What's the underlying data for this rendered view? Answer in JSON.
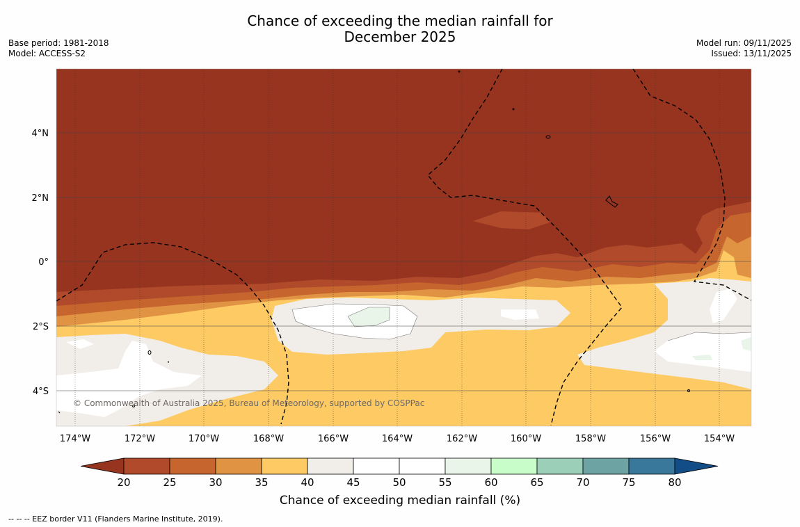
{
  "title": {
    "line1": "Chance of exceeding the median rainfall for",
    "line2": "December 2025"
  },
  "meta": {
    "base_period": "Base period: 1981-2018",
    "model": "Model: ACCESS-S2",
    "model_run": "Model run: 09/11/2025",
    "issued": "Issued: 13/11/2025"
  },
  "map": {
    "x_ticks": [
      "174°W",
      "172°W",
      "170°W",
      "168°W",
      "166°W",
      "164°W",
      "162°W",
      "160°W",
      "158°W",
      "156°W",
      "154°W"
    ],
    "y_ticks": [
      "4°N",
      "2°N",
      "0°",
      "2°S",
      "4°S"
    ],
    "copyright": "© Commonwealth of Australia 2025, Bureau of Meteorology, supported by COSPPac"
  },
  "colorbar": {
    "title": "Chance of exceeding median rainfall (%)",
    "tick_labels": [
      "20",
      "25",
      "30",
      "35",
      "40",
      "45",
      "50",
      "55",
      "60",
      "65",
      "70",
      "75",
      "80"
    ],
    "colors": [
      "#973420",
      "#b04a2a",
      "#c7652f",
      "#e19344",
      "#fdca64",
      "#f1ede8",
      "#ffffff",
      "#ffffff",
      "#eaf5ea",
      "#c8fdca",
      "#9ccfb7",
      "#6ea3a4",
      "#39789b",
      "#134d87"
    ]
  },
  "footnote": "--  --  -- EEZ border V11 (Flanders Marine Institute, 2019)."
}
